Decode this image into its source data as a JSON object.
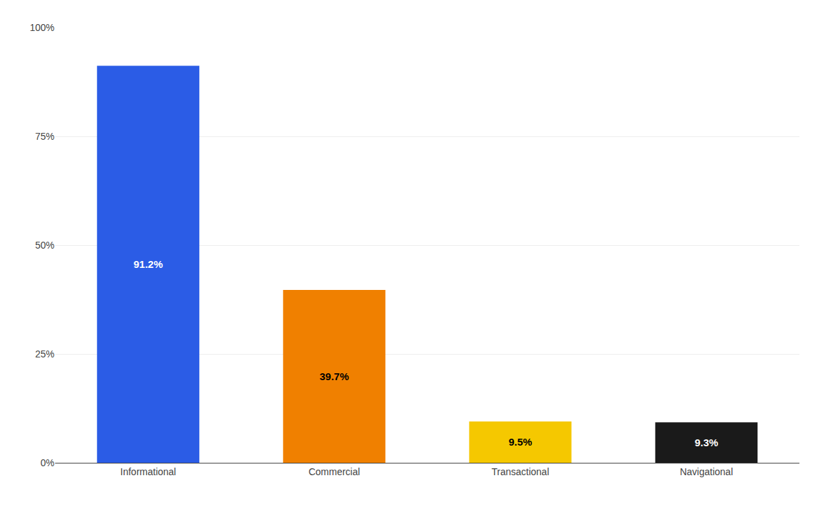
{
  "chart_data": {
    "type": "bar",
    "categories": [
      "Informational",
      "Commercial",
      "Transactional",
      "Navigational"
    ],
    "values": [
      91.2,
      39.7,
      9.5,
      9.3
    ],
    "value_labels": [
      "91.2%",
      "39.7%",
      "9.5%",
      "9.3%"
    ],
    "colors": [
      "#2B5CE6",
      "#F08000",
      "#F5C800",
      "#1A1A1A"
    ],
    "data_labels": true,
    "ylim": [
      0,
      100
    ],
    "yticks": [
      {
        "value": 0,
        "label": "0%"
      },
      {
        "value": 25,
        "label": "25%"
      },
      {
        "value": 50,
        "label": "50%"
      },
      {
        "value": 75,
        "label": "75%"
      },
      {
        "value": 100,
        "label": "100%"
      }
    ],
    "grid": true
  }
}
